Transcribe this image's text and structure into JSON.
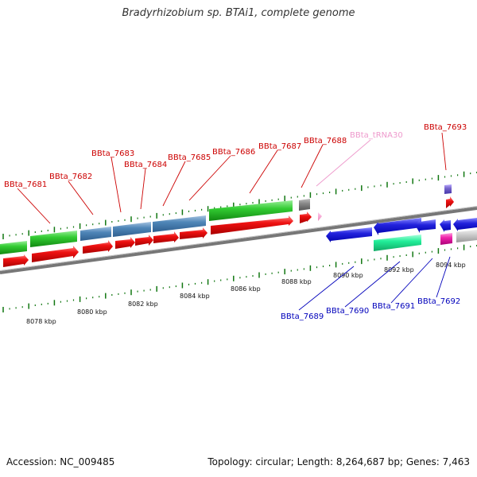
{
  "title": "Bradyrhizobium sp. BTAi1, complete genome",
  "footer": {
    "accession": "Accession: NC_009485",
    "summary": "Topology: circular; Length: 8,264,687 bp; Genes: 7,463"
  },
  "axis_labels": [
    "8078 kbp",
    "8080 kbp",
    "8082 kbp",
    "8084 kbp",
    "8086 kbp",
    "8088 kbp",
    "8090 kbp",
    "8092 kbp",
    "8094 kbp"
  ],
  "colors": {
    "red": "#ee1111",
    "green": "#33cc33",
    "steel": "#4f86b8",
    "blue": "#2222dd",
    "teal": "#22ee99",
    "magenta": "#ee22aa",
    "violet": "#7766cc",
    "gray": "#888888",
    "pink": "#ee99cc",
    "tick": "#117711",
    "top_label": "#cc0000",
    "bottom_label": "#0000bb",
    "trna_label": "#ee99cc"
  },
  "gene_labels": [
    {
      "name": "BBta_7681",
      "group": "top"
    },
    {
      "name": "BBta_7682",
      "group": "top"
    },
    {
      "name": "BBta_7683",
      "group": "top"
    },
    {
      "name": "BBta_7684",
      "group": "top"
    },
    {
      "name": "BBta_7685",
      "group": "top"
    },
    {
      "name": "BBta_7686",
      "group": "top"
    },
    {
      "name": "BBta_7687",
      "group": "top"
    },
    {
      "name": "BBta_7688",
      "group": "top"
    },
    {
      "name": "BBta_tRNA30",
      "group": "trna"
    },
    {
      "name": "BBta_7693",
      "group": "top"
    },
    {
      "name": "BBta_7689",
      "group": "bottom"
    },
    {
      "name": "BBta_7690",
      "group": "bottom"
    },
    {
      "name": "BBta_7691",
      "group": "bottom"
    },
    {
      "name": "BBta_7692",
      "group": "bottom"
    }
  ]
}
